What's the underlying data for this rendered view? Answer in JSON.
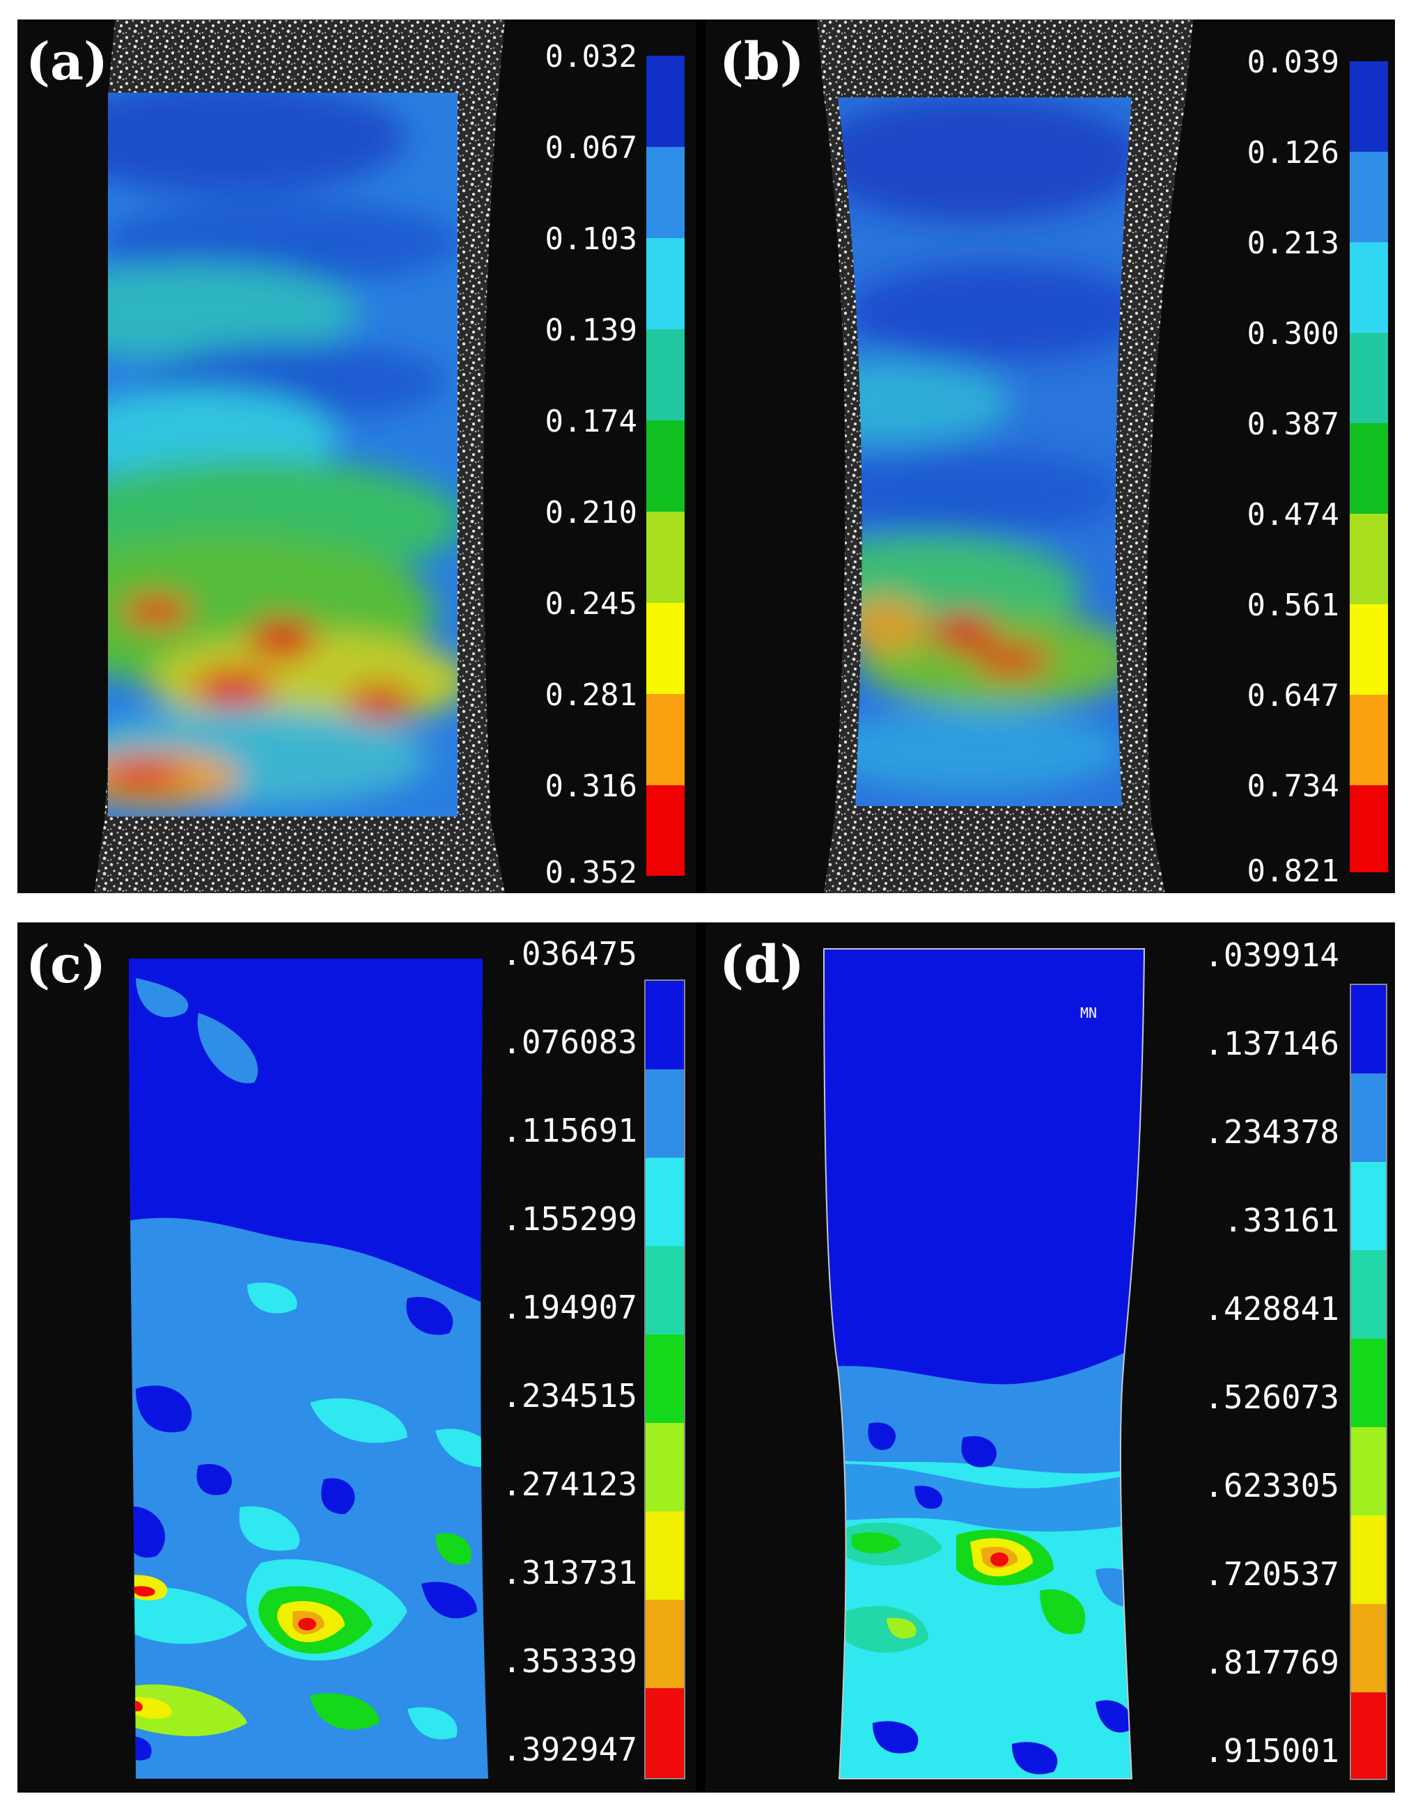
{
  "figure": {
    "panels": [
      {
        "label": "(a)",
        "type": "dic-strain-map",
        "legend_values": [
          "0.032",
          "0.067",
          "0.103",
          "0.139",
          "0.174",
          "0.210",
          "0.245",
          "0.281",
          "0.316",
          "0.352"
        ],
        "legend_colors": [
          "#1030c8",
          "#2e8ee8",
          "#2fd8f0",
          "#22c8a0",
          "#10c020",
          "#a8e020",
          "#f8f800",
          "#f8a010",
          "#f00000"
        ],
        "note_text": ""
      },
      {
        "label": "(b)",
        "type": "dic-strain-map",
        "legend_values": [
          "0.039",
          "0.126",
          "0.213",
          "0.300",
          "0.387",
          "0.474",
          "0.561",
          "0.647",
          "0.734",
          "0.821"
        ],
        "legend_colors": [
          "#1030c8",
          "#2e8ee8",
          "#2fd8f0",
          "#22c8a0",
          "#10c020",
          "#a8e020",
          "#f8f800",
          "#f8a010",
          "#f00000"
        ],
        "note_text": ""
      },
      {
        "label": "(c)",
        "type": "fem-contour",
        "legend_values": [
          ".036475",
          ".076083",
          ".115691",
          ".155299",
          ".194907",
          ".234515",
          ".274123",
          ".313731",
          ".353339",
          ".392947"
        ],
        "legend_colors": [
          "#0a14e0",
          "#2e8ee8",
          "#2fe8f0",
          "#22d8a8",
          "#14d81a",
          "#a0f020",
          "#f0f000",
          "#f0a810",
          "#f00a0a"
        ],
        "note_text": ""
      },
      {
        "label": "(d)",
        "type": "fem-contour",
        "legend_values": [
          ".039914",
          ".137146",
          ".234378",
          ".33161",
          ".428841",
          ".526073",
          ".623305",
          ".720537",
          ".817769",
          ".915001"
        ],
        "legend_colors": [
          "#0a14e0",
          "#2e8ee8",
          "#2fe8f0",
          "#22d8a8",
          "#14d81a",
          "#a0f020",
          "#f0f000",
          "#f0a810",
          "#f00a0a"
        ],
        "note_text": "MN"
      }
    ]
  }
}
